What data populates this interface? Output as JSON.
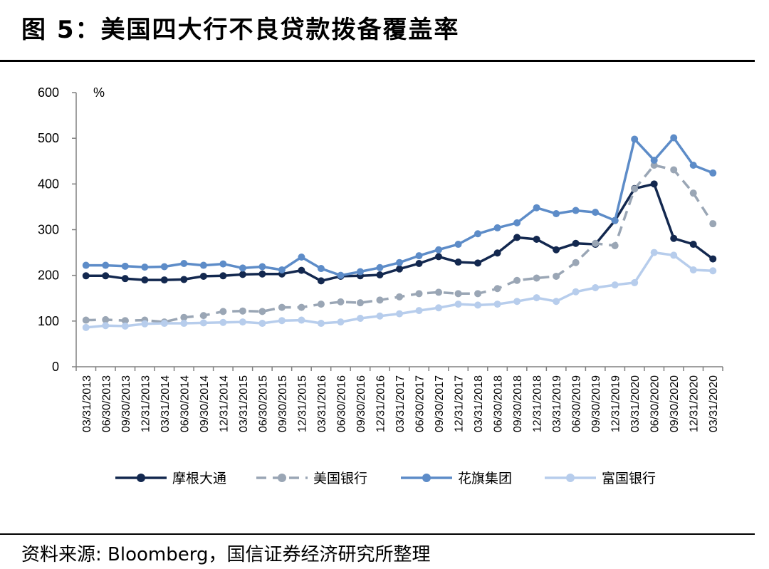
{
  "header": {
    "title": "图 5：美国四大行不良贷款拨备覆盖率"
  },
  "footer": {
    "source_label": "资料来源: Bloomberg，国信证券经济研究所整理"
  },
  "chart_data": {
    "type": "line",
    "title": "",
    "ylabel": "%",
    "xlabel": "",
    "ylim": [
      0,
      600
    ],
    "yticks": [
      0,
      100,
      200,
      300,
      400,
      500,
      600
    ],
    "grid": false,
    "legend_position": "bottom",
    "categories": [
      "03/31/2013",
      "06/30/2013",
      "09/30/2013",
      "12/31/2013",
      "03/31/2014",
      "06/30/2014",
      "09/30/2014",
      "12/31/2014",
      "03/31/2015",
      "06/30/2015",
      "09/30/2015",
      "12/31/2015",
      "03/31/2016",
      "06/30/2016",
      "09/30/2016",
      "12/31/2016",
      "03/31/2017",
      "06/30/2017",
      "09/30/2017",
      "12/31/2017",
      "03/31/2018",
      "06/30/2018",
      "09/30/2018",
      "12/31/2018",
      "03/31/2019",
      "06/30/2019",
      "09/30/2019",
      "12/31/2019",
      "03/31/2020",
      "06/30/2020",
      "09/30/2020",
      "12/31/2020",
      "03/31/2020"
    ],
    "series": [
      {
        "name": "摩根大通",
        "color": "#13284f",
        "dash": false,
        "values": [
          199,
          199,
          193,
          190,
          190,
          191,
          198,
          199,
          202,
          203,
          203,
          211,
          188,
          198,
          199,
          201,
          214,
          226,
          241,
          229,
          227,
          249,
          283,
          279,
          256,
          270,
          268,
          320,
          390,
          400,
          281,
          268,
          236
        ]
      },
      {
        "name": "美国银行",
        "color": "#9aa6b5",
        "dash": true,
        "values": [
          102,
          103,
          101,
          102,
          98,
          108,
          112,
          121,
          122,
          121,
          130,
          130,
          137,
          142,
          140,
          146,
          153,
          160,
          163,
          160,
          160,
          171,
          189,
          194,
          198,
          228,
          270,
          265,
          389,
          441,
          431,
          380,
          313
        ]
      },
      {
        "name": "花旗集团",
        "color": "#5d8cc8",
        "dash": false,
        "values": [
          222,
          222,
          220,
          218,
          219,
          226,
          222,
          225,
          216,
          219,
          212,
          240,
          215,
          200,
          208,
          217,
          228,
          243,
          256,
          268,
          291,
          304,
          315,
          348,
          335,
          342,
          338,
          320,
          498,
          452,
          501,
          441,
          424
        ]
      },
      {
        "name": "富国银行",
        "color": "#b7cdec",
        "dash": false,
        "values": [
          86,
          90,
          89,
          94,
          95,
          95,
          96,
          97,
          98,
          95,
          101,
          102,
          95,
          98,
          106,
          111,
          116,
          123,
          129,
          137,
          135,
          137,
          143,
          151,
          143,
          164,
          173,
          179,
          184,
          250,
          244,
          212,
          210
        ]
      }
    ]
  }
}
